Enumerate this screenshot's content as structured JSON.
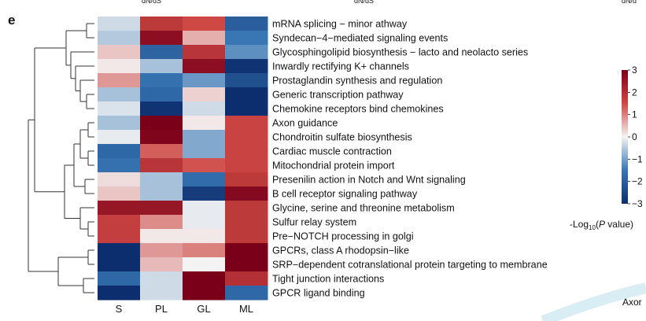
{
  "panel_letter": "e",
  "top_fragments": [
    "dN/dS",
    "dN/dS",
    "dN/d"
  ],
  "side_fragment": "Axor",
  "chart_data": {
    "type": "heatmap",
    "title": "",
    "columns": [
      "S",
      "PL",
      "GL",
      "ML"
    ],
    "rows": [
      "mRNA splicing − minor athway",
      "Syndecan−4−mediated signaling events",
      "Glycosphingolipid biosynthesis − lacto and neolacto series",
      "Inwardly rectifying K+ channels",
      "Prostaglandin synthesis and regulation",
      "Generic transcription pathway",
      "Chemokine receptors bind chemokines",
      "Axon guidance",
      "Chondroitin sulfate biosynthesis",
      "Cardiac muscle contraction",
      "Mitochondrial protein import",
      "Presenilin action in Notch and Wnt signaling",
      "B cell receptor signaling pathway",
      "Glycine, serine and threonine metabolism",
      "Sulfur relay system",
      "Pre−NOTCH processing in golgi",
      "GPCRs, class A rhodopsin−like",
      "SRP−dependent cotranslational protein targeting to membrane",
      "Tight junction interactions",
      "GPCR ligand binding"
    ],
    "values": [
      [
        -0.3,
        1.8,
        1.5,
        -2.0
      ],
      [
        -0.5,
        2.7,
        0.6,
        -1.5
      ],
      [
        0.4,
        -1.9,
        1.9,
        -1.2
      ],
      [
        0.1,
        -0.6,
        2.7,
        -2.9
      ],
      [
        0.8,
        -1.6,
        -1.1,
        -2.3
      ],
      [
        -0.6,
        -1.8,
        0.3,
        -3.0
      ],
      [
        -0.2,
        -2.9,
        -0.3,
        -3.0
      ],
      [
        -0.6,
        3.0,
        0.1,
        1.6
      ],
      [
        -0.1,
        2.9,
        -0.9,
        1.6
      ],
      [
        -1.8,
        1.3,
        -0.9,
        1.6
      ],
      [
        -1.6,
        1.9,
        1.4,
        1.6
      ],
      [
        0.2,
        -0.6,
        -1.7,
        1.8
      ],
      [
        0.4,
        -0.6,
        -2.7,
        2.8
      ],
      [
        2.5,
        2.5,
        -0.1,
        1.8
      ],
      [
        1.7,
        0.9,
        -0.1,
        1.8
      ],
      [
        1.7,
        0.1,
        0.1,
        1.8
      ],
      [
        -3.0,
        0.8,
        1.0,
        3.0
      ],
      [
        -3.0,
        0.5,
        0.0,
        3.0
      ],
      [
        -1.8,
        -0.3,
        3.0,
        2.0
      ],
      [
        -3.0,
        -0.3,
        3.0,
        -1.8
      ]
    ],
    "scale": {
      "label_prefix": "-Log",
      "label_sub": "10",
      "label_mid": "(",
      "label_italic": "P",
      "label_suffix": " value)",
      "ticks": [
        3,
        2,
        1,
        0,
        -1,
        -2,
        -3
      ],
      "min": -3,
      "max": 3,
      "colors": {
        "low": "#0d2e6e",
        "mid": "#f3f3f3",
        "high": "#7a0019"
      }
    },
    "legend_position": "right",
    "row_dendrogram": true
  }
}
